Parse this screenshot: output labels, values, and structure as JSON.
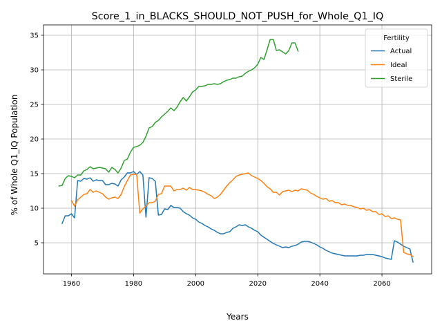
{
  "chart_data": {
    "type": "line",
    "title": "Score_1_in_BLACKS_SHOULD_NOT_PUSH_for_Whole_Q1_IQ",
    "xlabel": "Years",
    "ylabel": "% of Whole Q1_IQ Population",
    "xlim": [
      1951,
      2076
    ],
    "ylim": [
      0.5,
      36.5
    ],
    "xticks": [
      1960,
      1980,
      2000,
      2020,
      2040,
      2060
    ],
    "yticks": [
      5,
      10,
      15,
      20,
      25,
      30,
      35
    ],
    "grid": true,
    "legend": {
      "title": "Fertility",
      "placement": "top-right"
    },
    "series": [
      {
        "name": "Actual",
        "color": "#1f77b4",
        "points": [
          [
            1957,
            7.8
          ],
          [
            1958,
            8.9
          ],
          [
            1959,
            8.9
          ],
          [
            1960,
            9.2
          ],
          [
            1961,
            8.6
          ],
          [
            1962,
            14.0
          ],
          [
            1963,
            13.9
          ],
          [
            1964,
            14.3
          ],
          [
            1965,
            14.2
          ],
          [
            1966,
            14.4
          ],
          [
            1967,
            13.9
          ],
          [
            1968,
            14.1
          ],
          [
            1969,
            14.0
          ],
          [
            1970,
            14.0
          ],
          [
            1971,
            13.4
          ],
          [
            1972,
            13.4
          ],
          [
            1973,
            13.6
          ],
          [
            1974,
            13.5
          ],
          [
            1975,
            13.2
          ],
          [
            1976,
            14.1
          ],
          [
            1977,
            14.5
          ],
          [
            1978,
            15.1
          ],
          [
            1979,
            15.1
          ],
          [
            1980,
            15.3
          ],
          [
            1981,
            14.9
          ],
          [
            1982,
            15.3
          ],
          [
            1983,
            14.8
          ],
          [
            1984,
            8.7
          ],
          [
            1985,
            14.4
          ],
          [
            1986,
            14.3
          ],
          [
            1987,
            13.9
          ],
          [
            1988,
            9.0
          ],
          [
            1989,
            9.1
          ],
          [
            1990,
            9.9
          ],
          [
            1991,
            9.8
          ],
          [
            1992,
            10.4
          ],
          [
            1993,
            10.1
          ],
          [
            1994,
            10.1
          ],
          [
            1995,
            10.0
          ],
          [
            1996,
            9.5
          ],
          [
            1997,
            9.2
          ],
          [
            1998,
            9.0
          ],
          [
            1999,
            8.6
          ],
          [
            2000,
            8.4
          ],
          [
            2001,
            8.0
          ],
          [
            2002,
            7.8
          ],
          [
            2003,
            7.5
          ],
          [
            2004,
            7.3
          ],
          [
            2005,
            7.0
          ],
          [
            2006,
            6.8
          ],
          [
            2007,
            6.5
          ],
          [
            2008,
            6.3
          ],
          [
            2009,
            6.3
          ],
          [
            2010,
            6.5
          ],
          [
            2011,
            6.6
          ],
          [
            2012,
            7.1
          ],
          [
            2013,
            7.3
          ],
          [
            2014,
            7.6
          ],
          [
            2015,
            7.5
          ],
          [
            2016,
            7.6
          ],
          [
            2017,
            7.3
          ],
          [
            2018,
            7.1
          ],
          [
            2019,
            6.8
          ],
          [
            2020,
            6.6
          ],
          [
            2021,
            6.1
          ],
          [
            2022,
            5.8
          ],
          [
            2023,
            5.5
          ],
          [
            2024,
            5.2
          ],
          [
            2025,
            4.9
          ],
          [
            2026,
            4.7
          ],
          [
            2027,
            4.5
          ],
          [
            2028,
            4.3
          ],
          [
            2029,
            4.4
          ],
          [
            2030,
            4.3
          ],
          [
            2031,
            4.5
          ],
          [
            2032,
            4.6
          ],
          [
            2033,
            4.8
          ],
          [
            2034,
            5.1
          ],
          [
            2035,
            5.2
          ],
          [
            2036,
            5.2
          ],
          [
            2037,
            5.1
          ],
          [
            2038,
            4.9
          ],
          [
            2039,
            4.7
          ],
          [
            2040,
            4.4
          ],
          [
            2041,
            4.2
          ],
          [
            2042,
            3.9
          ],
          [
            2043,
            3.7
          ],
          [
            2044,
            3.5
          ],
          [
            2045,
            3.4
          ],
          [
            2046,
            3.3
          ],
          [
            2047,
            3.2
          ],
          [
            2048,
            3.1
          ],
          [
            2049,
            3.1
          ],
          [
            2050,
            3.1
          ],
          [
            2051,
            3.1
          ],
          [
            2052,
            3.1
          ],
          [
            2053,
            3.2
          ],
          [
            2054,
            3.2
          ],
          [
            2055,
            3.3
          ],
          [
            2056,
            3.3
          ],
          [
            2057,
            3.3
          ],
          [
            2058,
            3.2
          ],
          [
            2059,
            3.1
          ],
          [
            2060,
            3.0
          ],
          [
            2061,
            2.8
          ],
          [
            2062,
            2.7
          ],
          [
            2063,
            2.6
          ],
          [
            2064,
            5.3
          ],
          [
            2065,
            5.1
          ],
          [
            2066,
            4.8
          ],
          [
            2067,
            4.5
          ],
          [
            2068,
            4.3
          ],
          [
            2069,
            4.1
          ],
          [
            2070,
            2.2
          ]
        ]
      },
      {
        "name": "Ideal",
        "color": "#ff7f0e",
        "points": [
          [
            1960,
            11.1
          ],
          [
            1961,
            10.3
          ],
          [
            1962,
            11.2
          ],
          [
            1963,
            11.6
          ],
          [
            1964,
            12.0
          ],
          [
            1965,
            12.1
          ],
          [
            1966,
            12.7
          ],
          [
            1967,
            12.3
          ],
          [
            1968,
            12.5
          ],
          [
            1969,
            12.3
          ],
          [
            1970,
            12.1
          ],
          [
            1971,
            11.6
          ],
          [
            1972,
            11.3
          ],
          [
            1973,
            11.5
          ],
          [
            1974,
            11.6
          ],
          [
            1975,
            11.4
          ],
          [
            1976,
            12.0
          ],
          [
            1977,
            13.1
          ],
          [
            1978,
            14.0
          ],
          [
            1979,
            14.8
          ],
          [
            1980,
            14.9
          ],
          [
            1981,
            14.9
          ],
          [
            1982,
            9.3
          ],
          [
            1983,
            9.9
          ],
          [
            1984,
            10.3
          ],
          [
            1985,
            10.8
          ],
          [
            1986,
            10.8
          ],
          [
            1987,
            11.0
          ],
          [
            1988,
            12.0
          ],
          [
            1989,
            12.1
          ],
          [
            1990,
            13.2
          ],
          [
            1991,
            13.2
          ],
          [
            1992,
            13.2
          ],
          [
            1993,
            12.5
          ],
          [
            1994,
            12.7
          ],
          [
            1995,
            12.7
          ],
          [
            1996,
            12.9
          ],
          [
            1997,
            12.6
          ],
          [
            1998,
            13.0
          ],
          [
            1999,
            12.7
          ],
          [
            2000,
            12.7
          ],
          [
            2001,
            12.6
          ],
          [
            2002,
            12.5
          ],
          [
            2003,
            12.3
          ],
          [
            2004,
            12.0
          ],
          [
            2005,
            11.8
          ],
          [
            2006,
            11.4
          ],
          [
            2007,
            11.6
          ],
          [
            2008,
            12.0
          ],
          [
            2009,
            12.6
          ],
          [
            2010,
            13.2
          ],
          [
            2011,
            13.7
          ],
          [
            2012,
            14.1
          ],
          [
            2013,
            14.6
          ],
          [
            2014,
            14.8
          ],
          [
            2015,
            14.9
          ],
          [
            2016,
            15.0
          ],
          [
            2017,
            15.1
          ],
          [
            2018,
            14.7
          ],
          [
            2019,
            14.5
          ],
          [
            2020,
            14.3
          ],
          [
            2021,
            14.0
          ],
          [
            2022,
            13.6
          ],
          [
            2023,
            13.1
          ],
          [
            2024,
            12.8
          ],
          [
            2025,
            12.3
          ],
          [
            2026,
            12.3
          ],
          [
            2027,
            11.9
          ],
          [
            2028,
            12.4
          ],
          [
            2029,
            12.5
          ],
          [
            2030,
            12.6
          ],
          [
            2031,
            12.4
          ],
          [
            2032,
            12.6
          ],
          [
            2033,
            12.5
          ],
          [
            2034,
            12.8
          ],
          [
            2035,
            12.7
          ],
          [
            2036,
            12.6
          ],
          [
            2037,
            12.2
          ],
          [
            2038,
            12.0
          ],
          [
            2039,
            11.7
          ],
          [
            2040,
            11.5
          ],
          [
            2041,
            11.3
          ],
          [
            2042,
            11.4
          ],
          [
            2043,
            11.0
          ],
          [
            2044,
            11.1
          ],
          [
            2045,
            10.8
          ],
          [
            2046,
            10.8
          ],
          [
            2047,
            10.5
          ],
          [
            2048,
            10.6
          ],
          [
            2049,
            10.4
          ],
          [
            2050,
            10.4
          ],
          [
            2051,
            10.2
          ],
          [
            2052,
            10.1
          ],
          [
            2053,
            9.9
          ],
          [
            2054,
            10.0
          ],
          [
            2055,
            9.7
          ],
          [
            2056,
            9.8
          ],
          [
            2057,
            9.5
          ],
          [
            2058,
            9.5
          ],
          [
            2059,
            9.1
          ],
          [
            2060,
            9.2
          ],
          [
            2061,
            8.8
          ],
          [
            2062,
            8.9
          ],
          [
            2063,
            8.5
          ],
          [
            2064,
            8.6
          ],
          [
            2065,
            8.4
          ],
          [
            2066,
            8.3
          ],
          [
            2067,
            3.6
          ],
          [
            2068,
            3.4
          ],
          [
            2069,
            3.3
          ],
          [
            2070,
            3.0
          ]
        ]
      },
      {
        "name": "Sterile",
        "color": "#2ca02c",
        "points": [
          [
            1956,
            13.2
          ],
          [
            1957,
            13.3
          ],
          [
            1958,
            14.3
          ],
          [
            1959,
            14.7
          ],
          [
            1960,
            14.6
          ],
          [
            1961,
            14.4
          ],
          [
            1962,
            14.8
          ],
          [
            1963,
            14.8
          ],
          [
            1964,
            15.4
          ],
          [
            1965,
            15.6
          ],
          [
            1966,
            16.0
          ],
          [
            1967,
            15.7
          ],
          [
            1968,
            15.8
          ],
          [
            1969,
            15.9
          ],
          [
            1970,
            15.8
          ],
          [
            1971,
            15.7
          ],
          [
            1972,
            15.2
          ],
          [
            1973,
            15.9
          ],
          [
            1974,
            15.6
          ],
          [
            1975,
            15.1
          ],
          [
            1976,
            15.8
          ],
          [
            1977,
            16.9
          ],
          [
            1978,
            17.1
          ],
          [
            1979,
            18.1
          ],
          [
            1980,
            18.8
          ],
          [
            1981,
            18.9
          ],
          [
            1982,
            19.1
          ],
          [
            1983,
            19.5
          ],
          [
            1984,
            20.4
          ],
          [
            1985,
            21.6
          ],
          [
            1986,
            21.8
          ],
          [
            1987,
            22.4
          ],
          [
            1988,
            22.7
          ],
          [
            1989,
            23.2
          ],
          [
            1990,
            23.6
          ],
          [
            1991,
            24.0
          ],
          [
            1992,
            24.5
          ],
          [
            1993,
            24.1
          ],
          [
            1994,
            24.6
          ],
          [
            1995,
            25.4
          ],
          [
            1996,
            26.0
          ],
          [
            1997,
            25.5
          ],
          [
            1998,
            26.1
          ],
          [
            1999,
            26.8
          ],
          [
            2000,
            27.1
          ],
          [
            2001,
            27.6
          ],
          [
            2002,
            27.6
          ],
          [
            2003,
            27.7
          ],
          [
            2004,
            27.9
          ],
          [
            2005,
            27.9
          ],
          [
            2006,
            28.0
          ],
          [
            2007,
            27.9
          ],
          [
            2008,
            28.0
          ],
          [
            2009,
            28.3
          ],
          [
            2010,
            28.5
          ],
          [
            2011,
            28.6
          ],
          [
            2012,
            28.8
          ],
          [
            2013,
            28.8
          ],
          [
            2014,
            29.0
          ],
          [
            2015,
            29.1
          ],
          [
            2016,
            29.5
          ],
          [
            2017,
            29.8
          ],
          [
            2018,
            30.0
          ],
          [
            2019,
            30.3
          ],
          [
            2020,
            30.8
          ],
          [
            2021,
            31.8
          ],
          [
            2022,
            31.5
          ],
          [
            2023,
            32.9
          ],
          [
            2024,
            34.4
          ],
          [
            2025,
            34.4
          ],
          [
            2026,
            32.8
          ],
          [
            2027,
            32.9
          ],
          [
            2028,
            32.6
          ],
          [
            2029,
            32.3
          ],
          [
            2030,
            32.8
          ],
          [
            2031,
            33.9
          ],
          [
            2032,
            33.9
          ],
          [
            2033,
            32.7
          ]
        ]
      }
    ]
  }
}
